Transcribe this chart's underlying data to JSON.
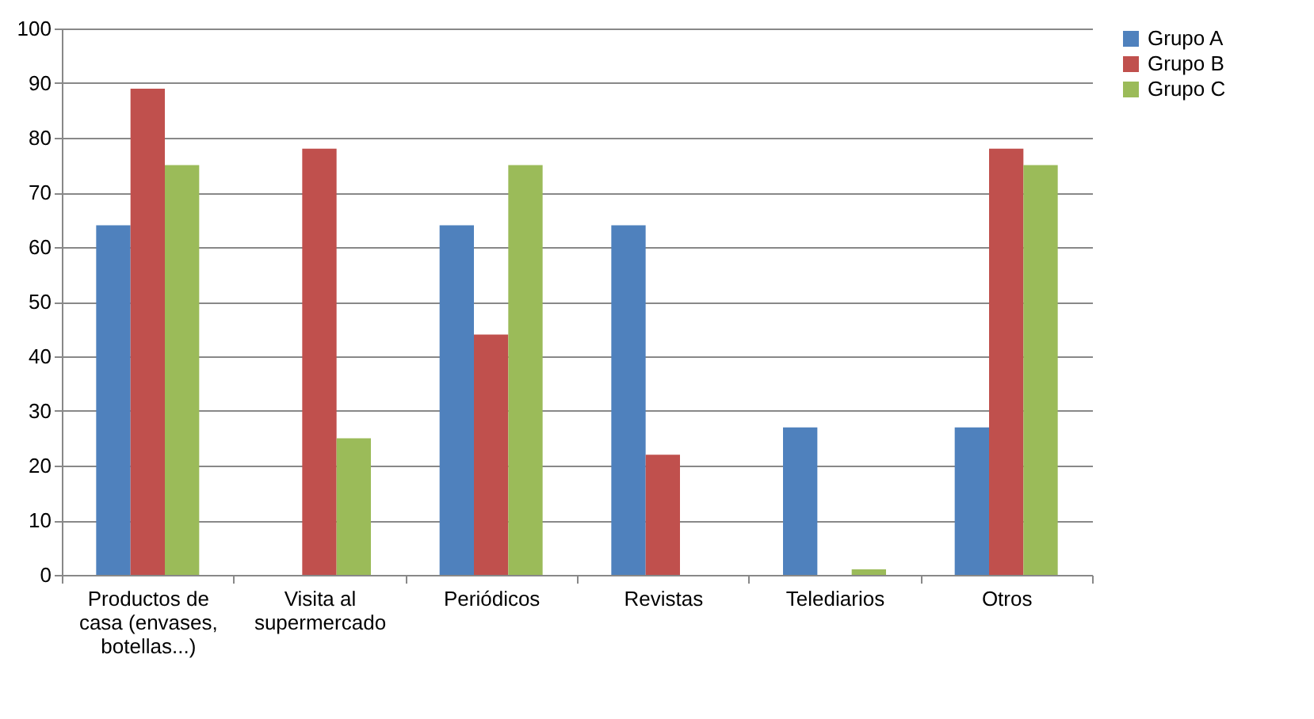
{
  "chart_data": {
    "type": "bar",
    "categories": [
      "Productos de casa (envases, botellas...)",
      "Visita al supermercado",
      "Periódicos",
      "Revistas",
      "Telediarios",
      "Otros"
    ],
    "series": [
      {
        "name": "Grupo A",
        "color": "#4f81bd",
        "values": [
          64,
          0,
          64,
          64,
          27,
          27
        ]
      },
      {
        "name": "Grupo B",
        "color": "#c0504d",
        "values": [
          89,
          78,
          44,
          22,
          0,
          78
        ]
      },
      {
        "name": "Grupo C",
        "color": "#9bbb59",
        "values": [
          75,
          25,
          75,
          0,
          1,
          75
        ]
      }
    ],
    "ylim": [
      0,
      100
    ],
    "yticks": [
      0,
      10,
      20,
      30,
      40,
      50,
      60,
      70,
      80,
      90,
      100
    ],
    "grid": "y",
    "legend": "right"
  }
}
